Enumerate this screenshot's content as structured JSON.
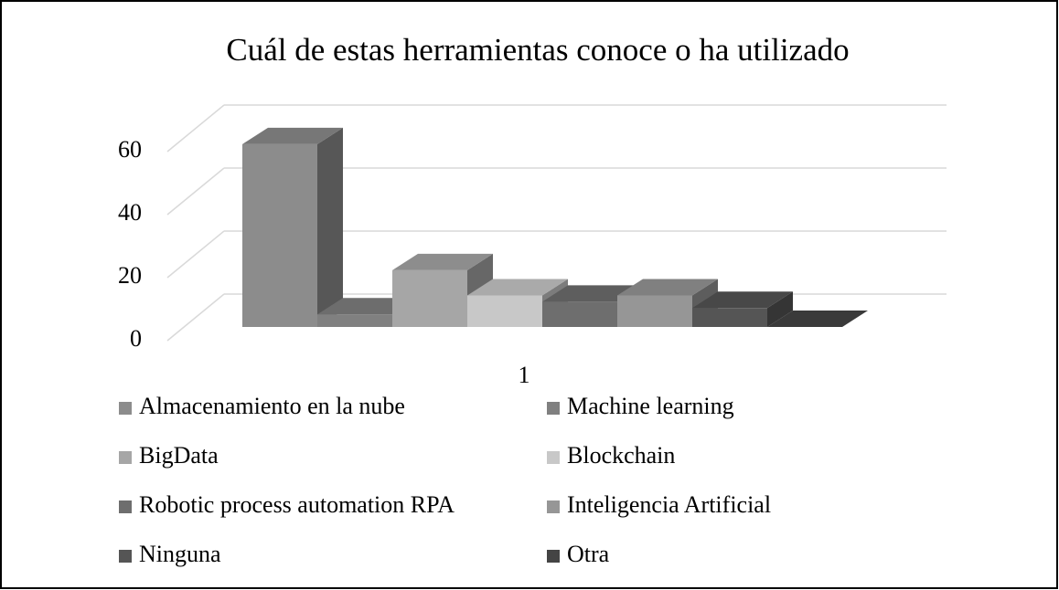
{
  "chart_data": {
    "type": "bar3d",
    "title": "Cuál de estas herramientas conoce o ha utilizado",
    "categories": [
      "1"
    ],
    "series": [
      {
        "name": "Almacenamiento en la nube",
        "color": "#8c8c8c",
        "values": [
          58
        ]
      },
      {
        "name": "Machine learning",
        "color": "#808080",
        "values": [
          4
        ]
      },
      {
        "name": "BigData",
        "color": "#a6a6a6",
        "values": [
          18
        ]
      },
      {
        "name": "Blockchain",
        "color": "#c8c8c8",
        "values": [
          10
        ]
      },
      {
        "name": "Robotic process automation RPA",
        "color": "#6e6e6e",
        "values": [
          8
        ]
      },
      {
        "name": "Inteligencia Artificial",
        "color": "#969696",
        "values": [
          10
        ]
      },
      {
        "name": "Ninguna",
        "color": "#555555",
        "values": [
          6
        ]
      },
      {
        "name": "Otra",
        "color": "#444444",
        "values": [
          0
        ]
      }
    ],
    "ylim": [
      0,
      60
    ],
    "yticks": [
      0,
      20,
      40,
      60
    ],
    "grid": true,
    "legend": "bottom"
  }
}
